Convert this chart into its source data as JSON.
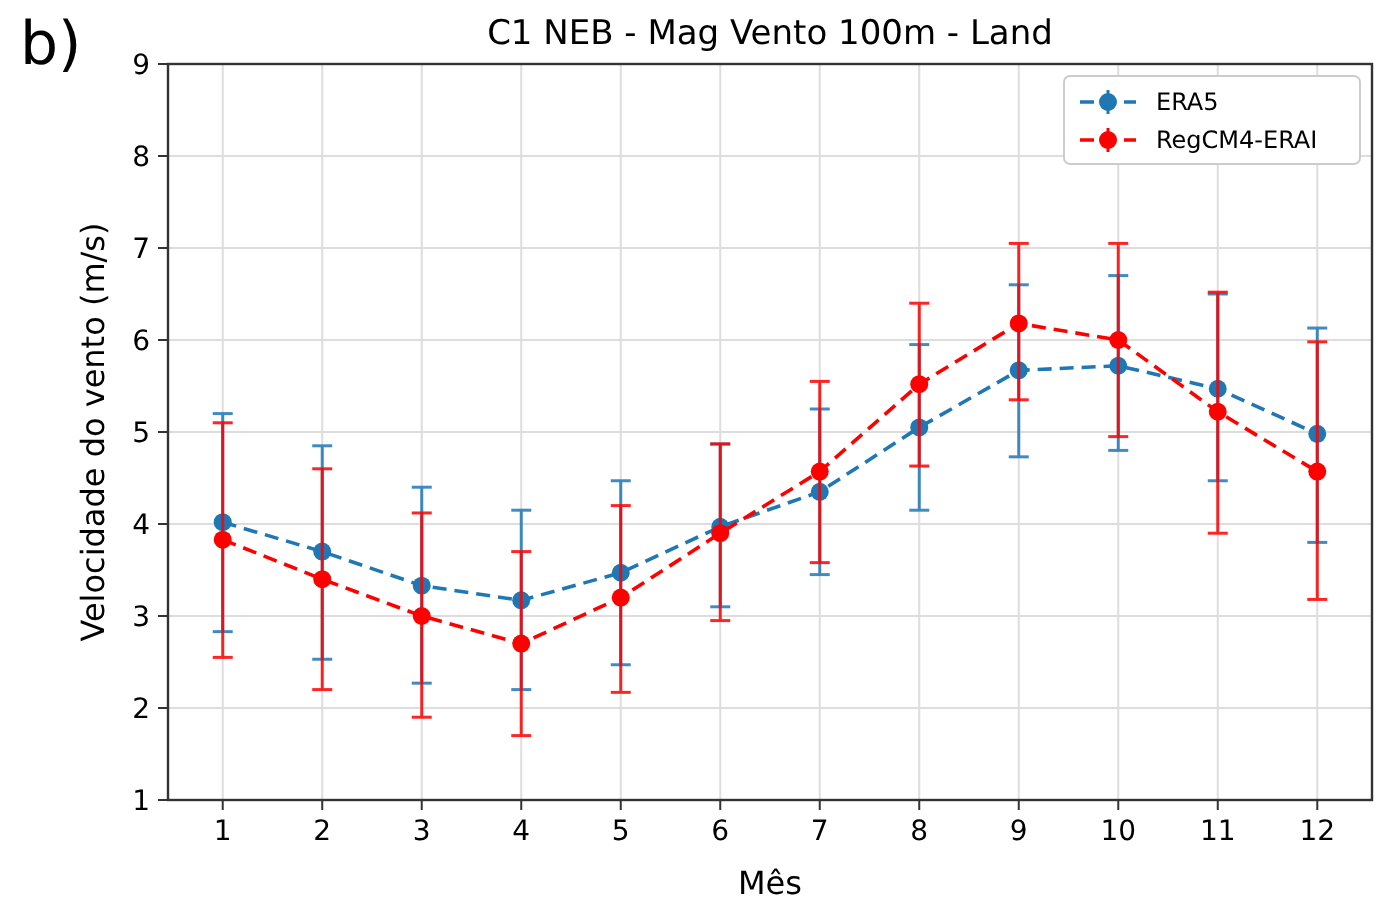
{
  "chart_data": {
    "type": "line",
    "title": "C1 NEB - Mag Vento 100m - Land",
    "xlabel": "Mês",
    "ylabel": "Velocidade do vento (m/s)",
    "annotations": [
      "b)"
    ],
    "x": [
      1,
      2,
      3,
      4,
      5,
      6,
      7,
      8,
      9,
      10,
      11,
      12
    ],
    "xlim": [
      0.45,
      12.55
    ],
    "xticks": [
      1,
      2,
      3,
      4,
      5,
      6,
      7,
      8,
      9,
      10,
      11,
      12
    ],
    "ylim": [
      1,
      9
    ],
    "yticks": [
      1,
      2,
      3,
      4,
      5,
      6,
      7,
      8,
      9
    ],
    "grid": true,
    "legend": "top right",
    "marker": "circle",
    "line_style": "dashed",
    "series": [
      {
        "name": "ERA5",
        "color": "#1f77b4",
        "values": [
          4.02,
          3.7,
          3.33,
          3.17,
          3.47,
          3.97,
          4.35,
          5.05,
          5.67,
          5.72,
          5.47,
          4.98
        ],
        "errors": [
          [
            2.83,
            5.2
          ],
          [
            2.53,
            4.85
          ],
          [
            2.27,
            4.4
          ],
          [
            2.2,
            4.15
          ],
          [
            2.47,
            4.47
          ],
          [
            3.1,
            4.87
          ],
          [
            3.45,
            5.25
          ],
          [
            4.15,
            5.95
          ],
          [
            4.73,
            6.6
          ],
          [
            4.8,
            6.7
          ],
          [
            4.47,
            6.5
          ],
          [
            3.8,
            6.13
          ]
        ]
      },
      {
        "name": "RegCM4-ERAI",
        "color": "#ff0000",
        "values": [
          3.83,
          3.4,
          3.0,
          2.7,
          3.2,
          3.9,
          4.57,
          5.52,
          6.18,
          6.0,
          5.22,
          4.57
        ],
        "errors": [
          [
            2.55,
            5.1
          ],
          [
            2.2,
            4.6
          ],
          [
            1.9,
            4.12
          ],
          [
            1.7,
            3.7
          ],
          [
            2.17,
            4.2
          ],
          [
            2.95,
            4.87
          ],
          [
            3.58,
            5.55
          ],
          [
            4.63,
            6.4
          ],
          [
            5.35,
            7.05
          ],
          [
            4.95,
            7.05
          ],
          [
            3.9,
            6.52
          ],
          [
            3.18,
            5.98
          ]
        ]
      }
    ]
  }
}
